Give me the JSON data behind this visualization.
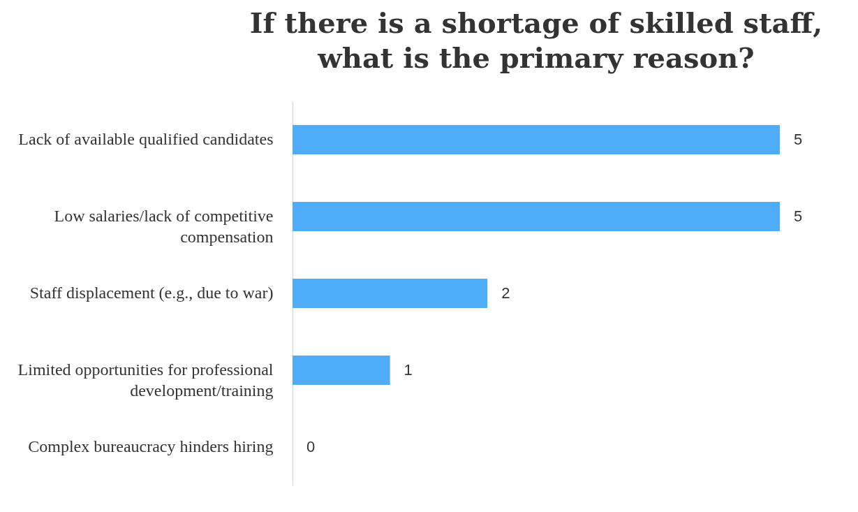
{
  "chart_data": {
    "type": "bar",
    "orientation": "horizontal",
    "title": "If there is a shortage of skilled staff, what is the primary reason?",
    "categories": [
      "Lack of available qualified candidates",
      "Low salaries/lack of competitive compensation",
      "Staff displacement (e.g., due to war)",
      "Limited opportunities for professional development/training",
      "Complex bureaucracy hinders hiring"
    ],
    "values": [
      5,
      5,
      2,
      1,
      0
    ],
    "color": "#4facf8",
    "data_labels": true
  }
}
